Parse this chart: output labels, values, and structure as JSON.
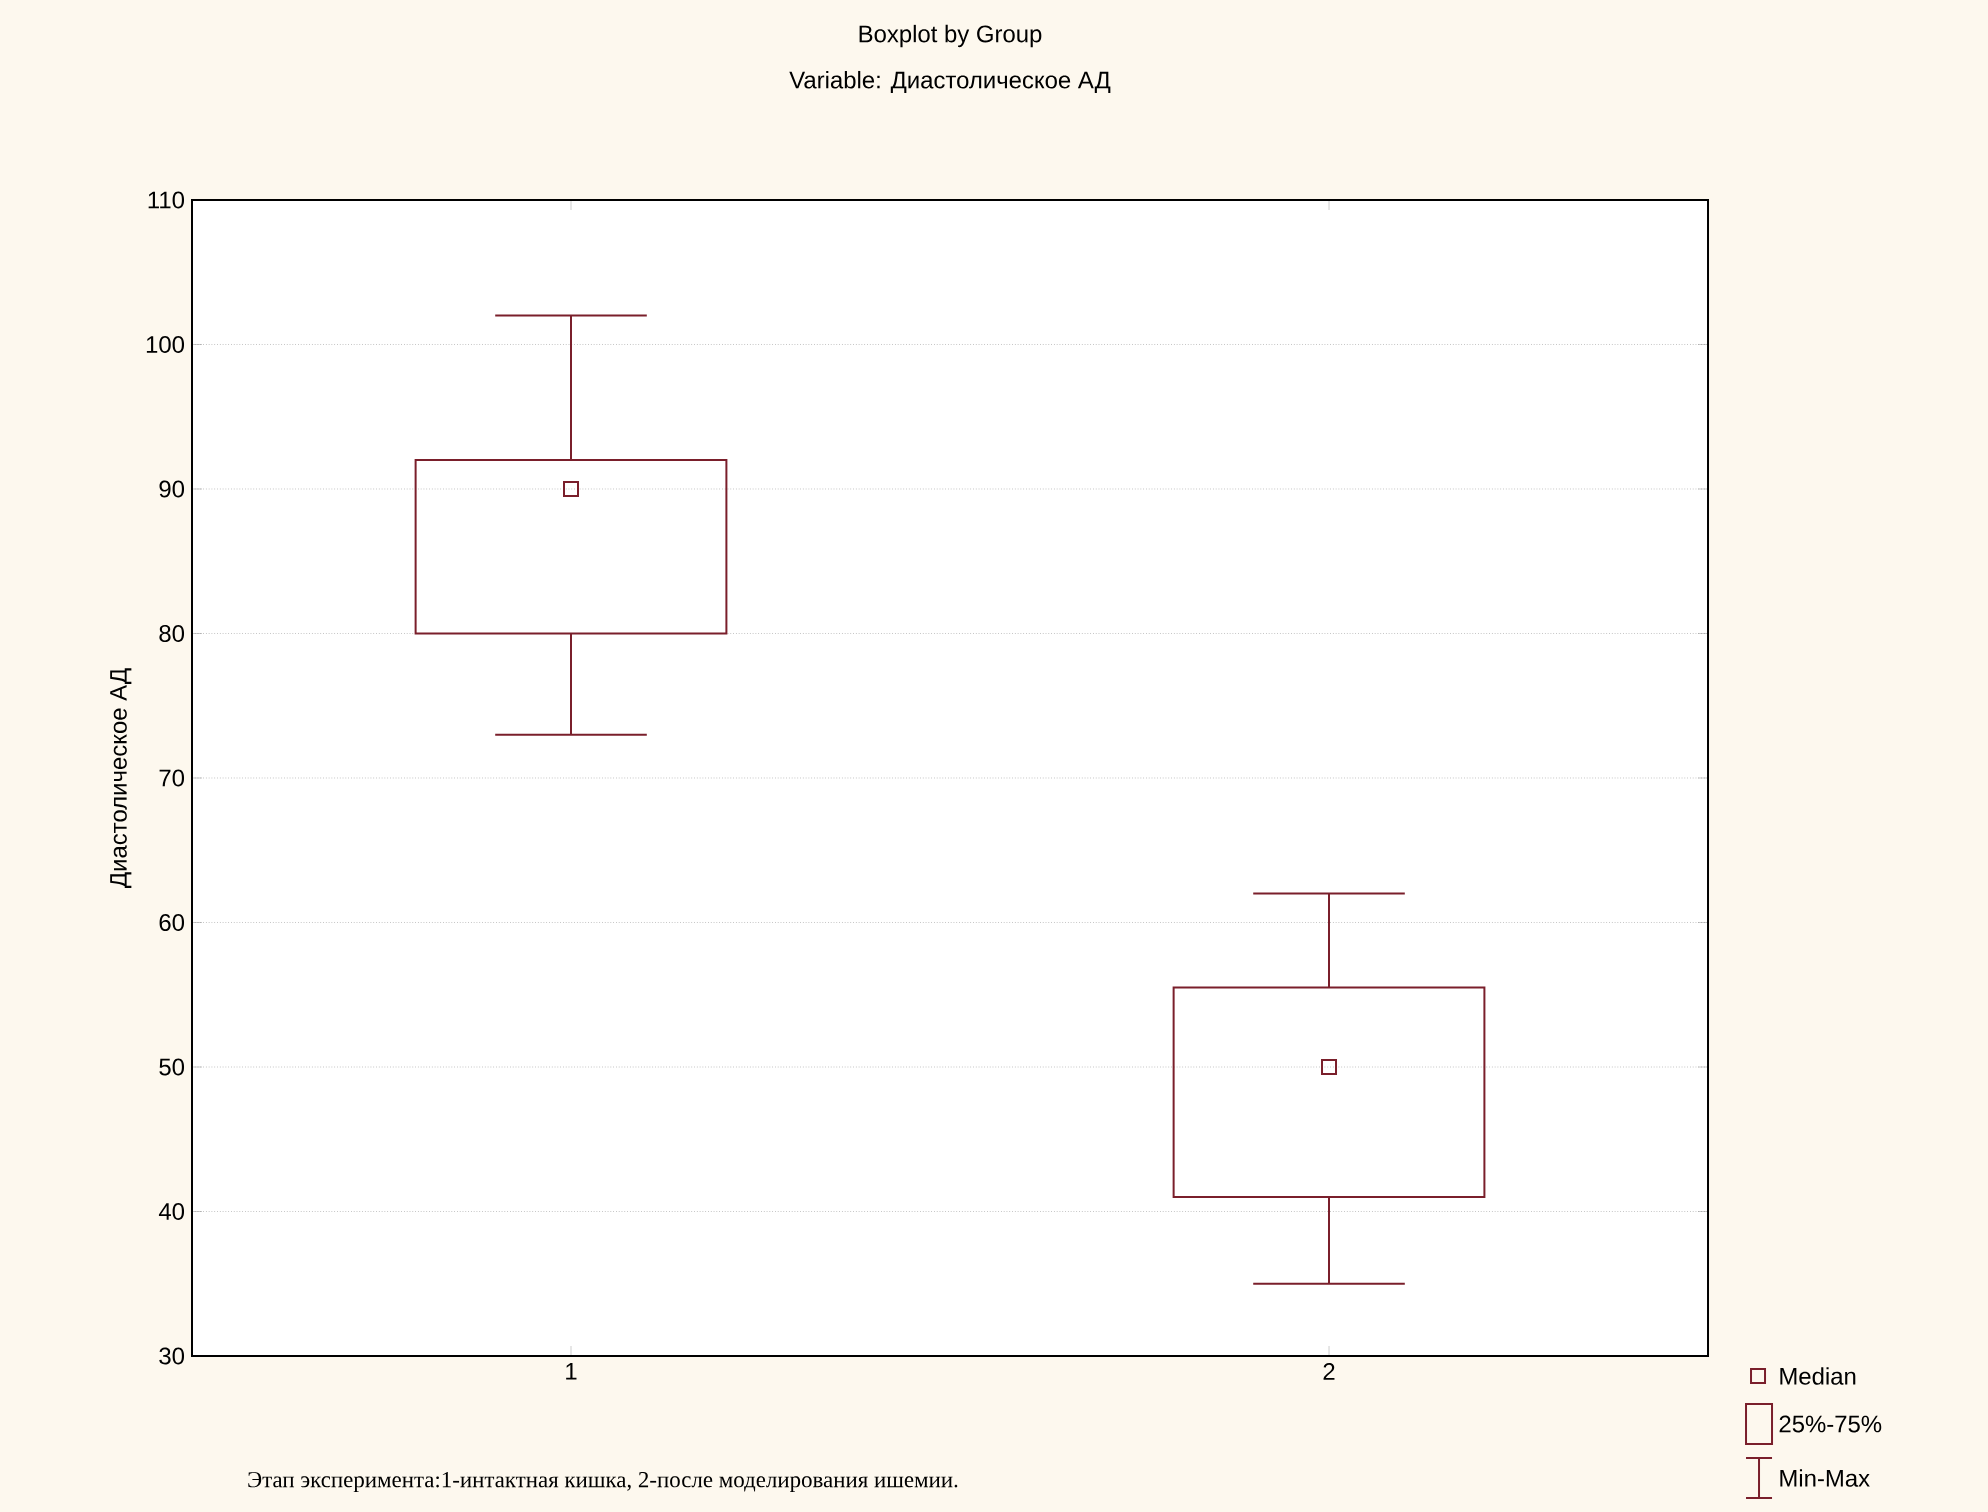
{
  "chart_data": {
    "type": "box",
    "title": "Boxplot by Group",
    "subtitle": "Variable: Диастолическое АД",
    "xlabel": "Этап эксперимента:1-интактная кишка, 2-после моделирования ишемии.",
    "ylabel": "Диастолическое АД",
    "categories": [
      "1",
      "2"
    ],
    "color": "#7a1f2b",
    "boxes": [
      {
        "low": 73,
        "q1": 80,
        "median": 90,
        "q3": 92,
        "high": 102
      },
      {
        "low": 35,
        "q1": 41,
        "median": 50,
        "q3": 55.5,
        "high": 62
      }
    ],
    "ylim": [
      30,
      110
    ],
    "yticks": [
      30,
      40,
      50,
      60,
      70,
      80,
      90,
      100,
      110
    ],
    "grid": "y",
    "annotations": [
      "Median",
      "25%-75%",
      "Min-Max"
    ]
  }
}
